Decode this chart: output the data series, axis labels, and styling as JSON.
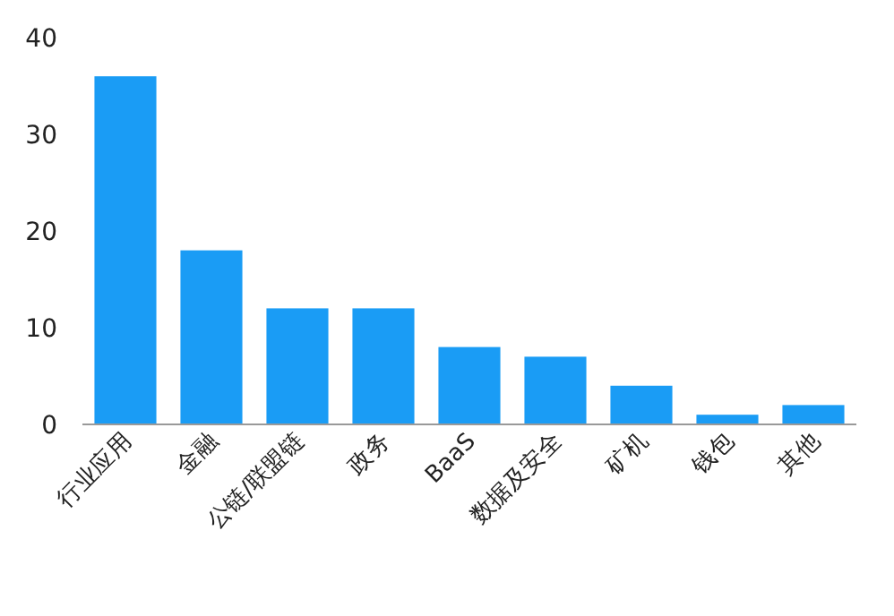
{
  "chart_data": {
    "type": "bar",
    "categories": [
      "行业应用",
      "金融",
      "公链/联盟链",
      "政务",
      "BaaS",
      "数据及安全",
      "矿机",
      "钱包",
      "其他"
    ],
    "values": [
      36,
      18,
      12,
      12,
      8,
      7,
      4,
      1,
      2
    ],
    "color": "#1a9cf5",
    "ylim": [
      0,
      40
    ],
    "yticks": [
      0,
      10,
      20,
      30,
      40
    ],
    "grid": false
  }
}
